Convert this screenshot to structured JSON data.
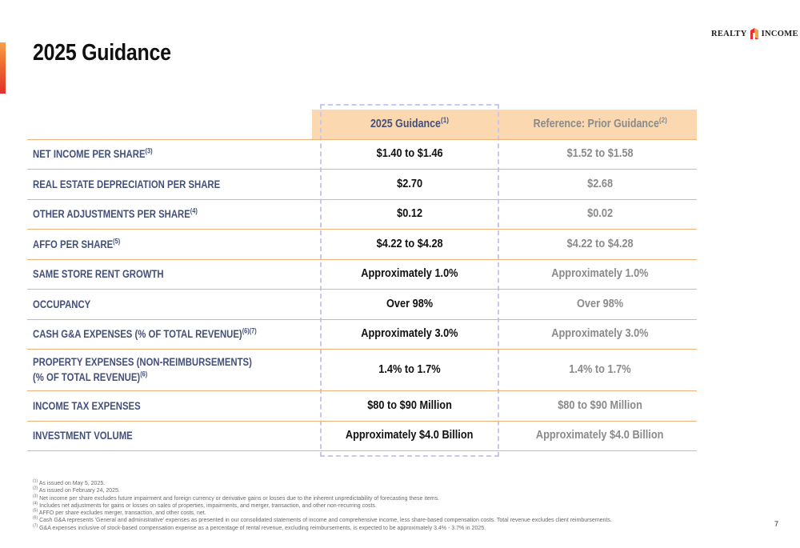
{
  "title": "2025 Guidance",
  "logo": {
    "left": "REALTY",
    "right": "INCOME"
  },
  "columns": {
    "current": {
      "label": "2025 Guidance",
      "note": "(1)"
    },
    "prior": {
      "label": "Reference:  Prior Guidance",
      "note": "(2)"
    }
  },
  "rows": [
    {
      "label": "NET INCOME PER SHARE",
      "note": "(3)",
      "current": "$1.40 to $1.46",
      "prior": "$1.52 to $1.58"
    },
    {
      "label": "REAL ESTATE DEPRECIATION PER SHARE",
      "note": "",
      "current": "$2.70",
      "prior": "$2.68"
    },
    {
      "label": "OTHER ADJUSTMENTS PER SHARE",
      "note": "(4)",
      "current": "$0.12",
      "prior": "$0.02"
    },
    {
      "label": "AFFO PER SHARE",
      "note": "(5)",
      "current": "$4.22 to $4.28",
      "prior": "$4.22 to $4.28"
    },
    {
      "label": "SAME STORE RENT GROWTH",
      "note": "",
      "current": "Approximately 1.0%",
      "prior": "Approximately 1.0%"
    },
    {
      "label": "OCCUPANCY",
      "note": "",
      "current": "Over 98%",
      "prior": "Over 98%"
    },
    {
      "label": "CASH G&A EXPENSES (% OF TOTAL REVENUE)",
      "note": "(6)(7)",
      "current": "Approximately 3.0%",
      "prior": "Approximately 3.0%"
    },
    {
      "label": "PROPERTY EXPENSES (NON-REIMBURSEMENTS)",
      "label2": "(% OF TOTAL REVENUE)",
      "note": "(6)",
      "current": "1.4% to 1.7%",
      "prior": "1.4% to 1.7%"
    },
    {
      "label": "INCOME TAX EXPENSES",
      "note": "",
      "current": "$80 to $90 Million",
      "prior": "$80 to $90 Million"
    },
    {
      "label": "INVESTMENT VOLUME",
      "note": "",
      "current": "Approximately $4.0 Billion",
      "prior": "Approximately $4.0 Billion"
    }
  ],
  "footnotes": [
    {
      "num": "(1)",
      "text": "As issued on May 5, 2025."
    },
    {
      "num": "(2)",
      "text": "As issued on February 24, 2025."
    },
    {
      "num": "(3)",
      "text": "Net income per share excludes future impairment and foreign currency or derivative gains or losses due to the inherent unpredictability of forecasting these items."
    },
    {
      "num": "(4)",
      "text": "Includes net adjustments for gains or losses on sales of properties, impairments, and merger, transaction, and other non-recurring costs."
    },
    {
      "num": "(5)",
      "text": "AFFO per share excludes merger, transaction, and other costs, net."
    },
    {
      "num": "(6)",
      "text": "Cash G&A represents 'General and administrative' expenses as presented in our consolidated statements of income and comprehensive income, less share-based compensation costs. Total revenue excludes client reimbursements."
    },
    {
      "num": "(7)",
      "text": "G&A expenses inclusive of stock-based compensation expense as a percentage of rental revenue, excluding reimbursements, is expected to be approximately 3.4% - 3.7% in 2025."
    }
  ],
  "page_number": "7",
  "colors": {
    "accent": "#ee6a2c",
    "header_fill": "#fbd8b0",
    "label": "#44507a",
    "rule": "#f0b27a"
  }
}
